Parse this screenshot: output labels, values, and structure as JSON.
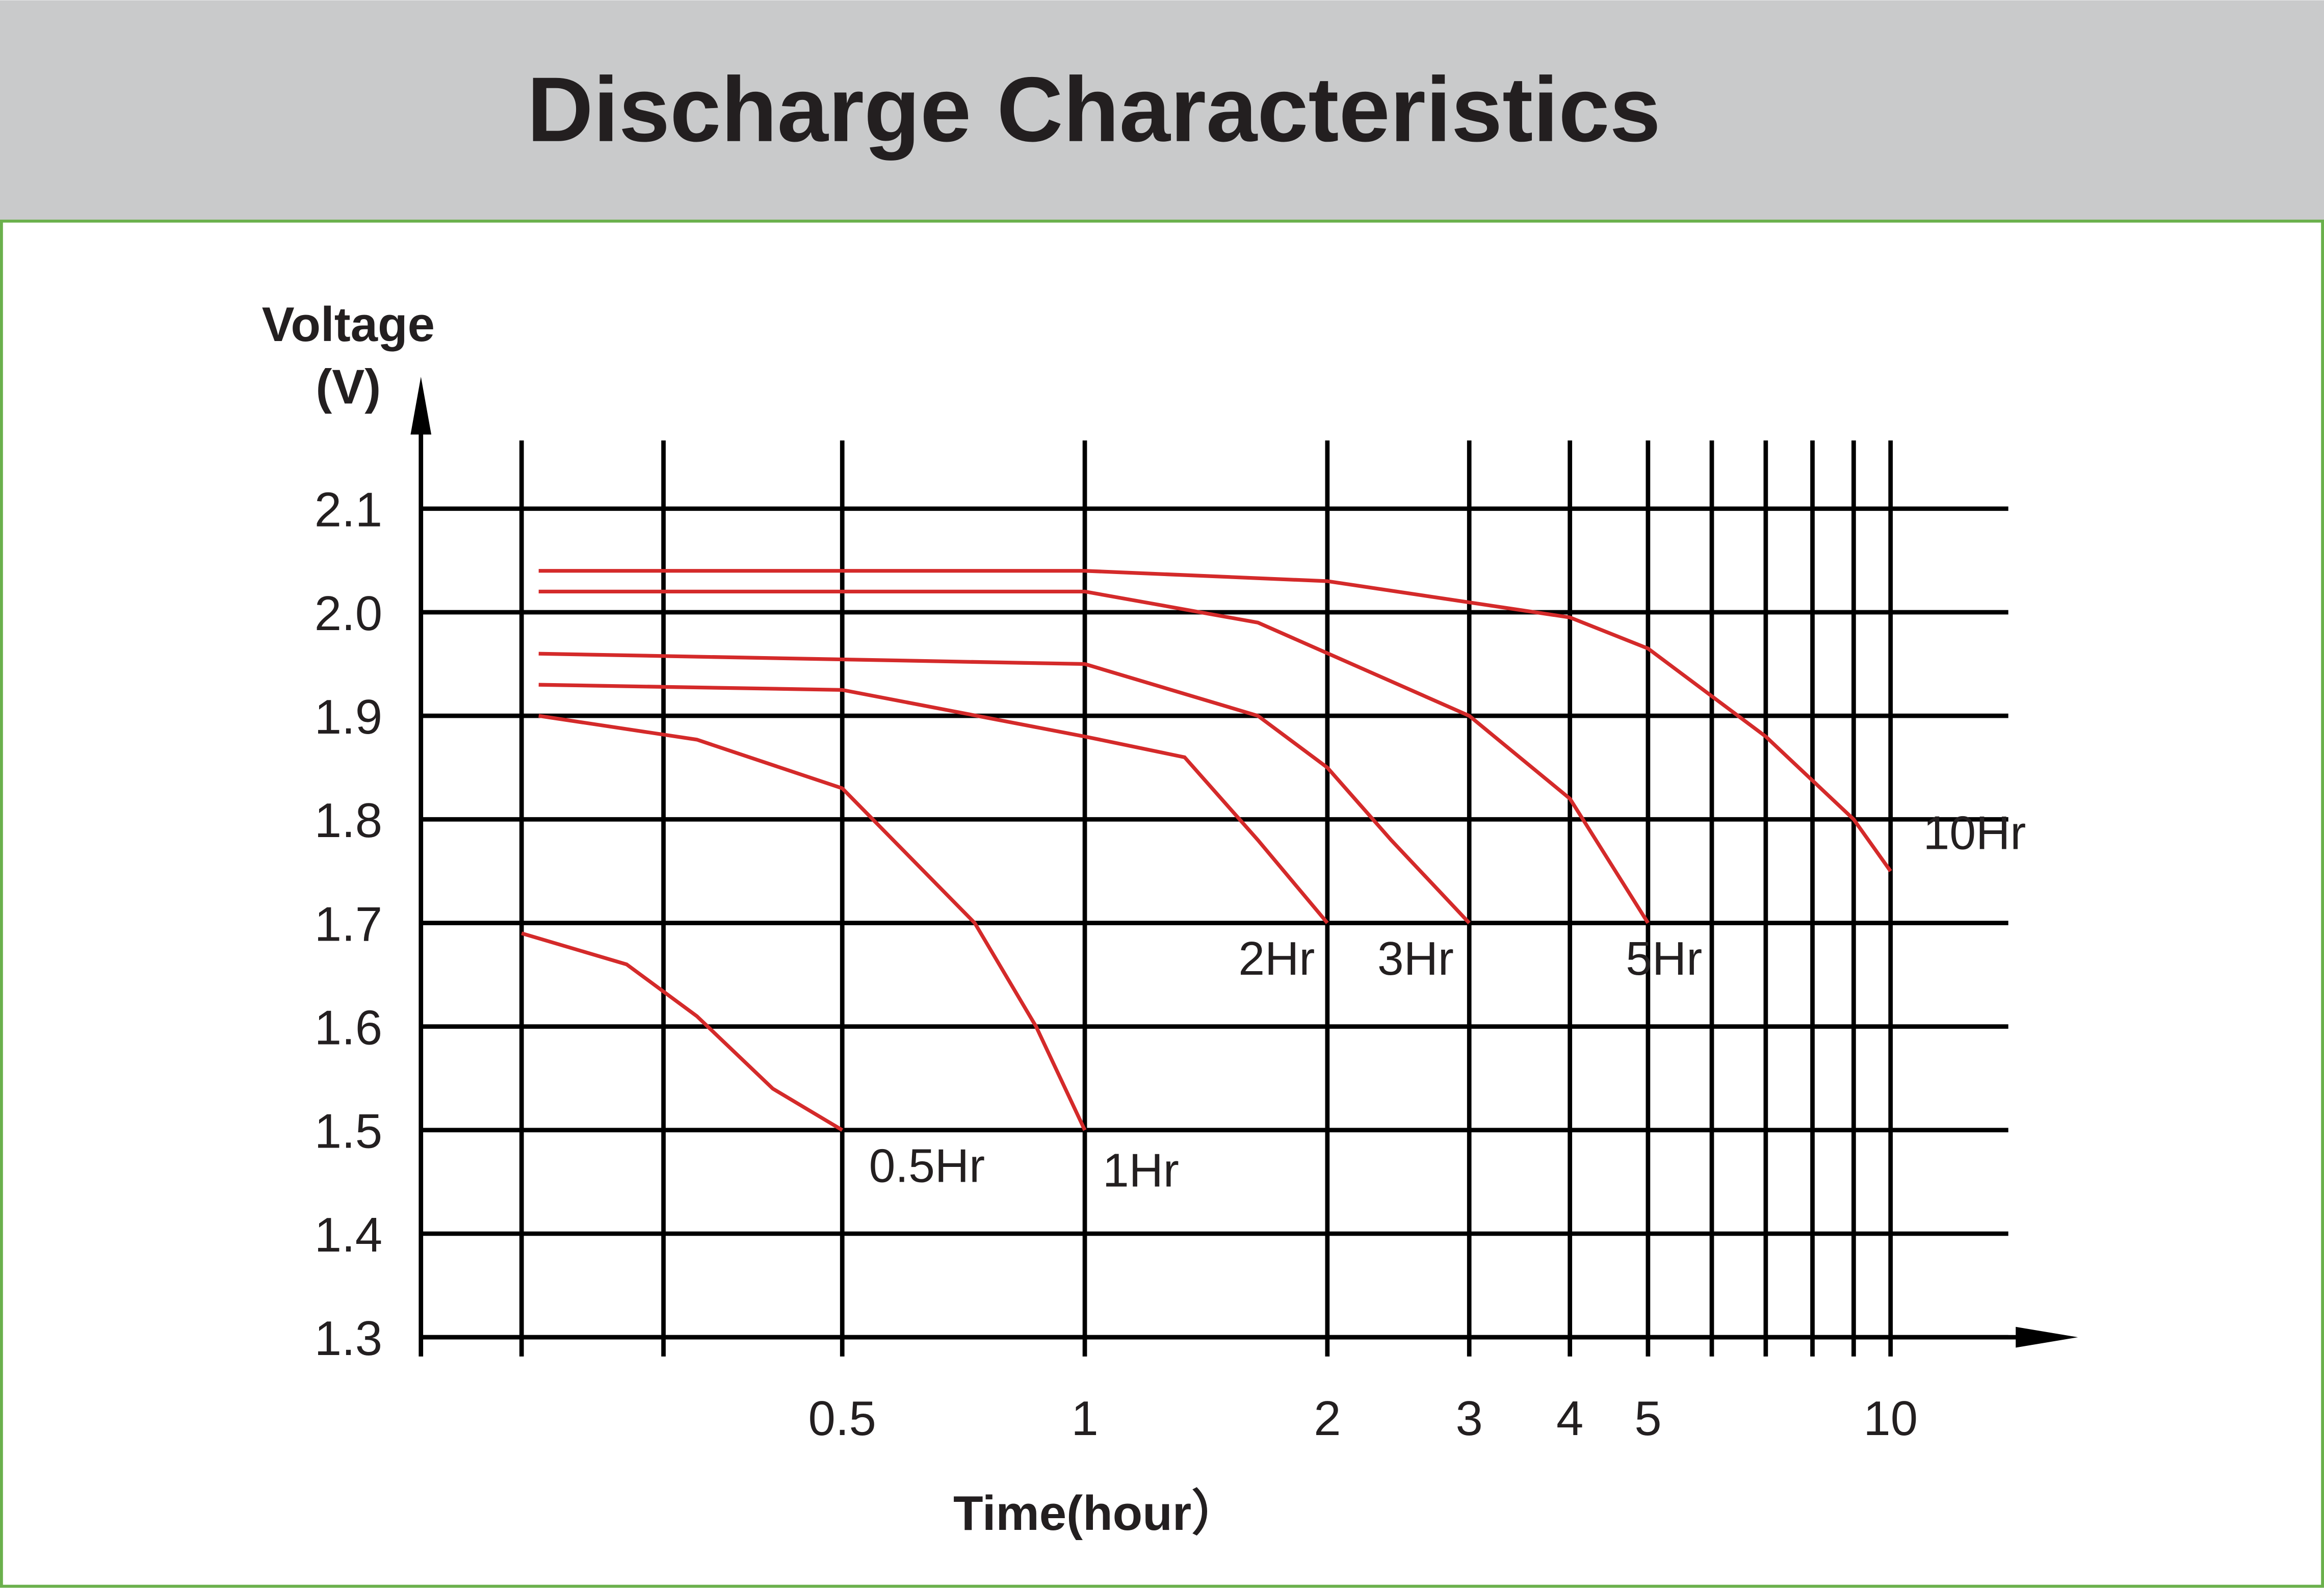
{
  "chart_data": {
    "type": "line",
    "title": "Discharge Characteristics",
    "ylabel": [
      "Voltage",
      "(V)"
    ],
    "xlabel": "Time(hour）",
    "xscale": "log",
    "xlim": [
      0.15,
      14
    ],
    "ylim": [
      1.3,
      2.1
    ],
    "xticks": [
      0.5,
      1,
      2,
      3,
      4,
      5,
      10
    ],
    "x_minor_gridlines": [
      0.2,
      0.3,
      6,
      7,
      8,
      9
    ],
    "yticks": [
      1.3,
      1.4,
      1.5,
      1.6,
      1.7,
      1.8,
      1.9,
      {
        "value": 2,
        "label": "2.0"
      },
      2.1
    ],
    "grid": true,
    "series": [
      {
        "name": "0.5Hr",
        "color": "#d42a2a",
        "x": [
          0.2,
          0.27,
          0.33,
          0.41,
          0.5
        ],
        "values": [
          1.69,
          1.66,
          1.61,
          1.54,
          1.5
        ]
      },
      {
        "name": "1Hr",
        "color": "#d42a2a",
        "x": [
          0.21,
          0.33,
          0.5,
          0.73,
          0.87,
          1
        ],
        "values": [
          1.9,
          1.877,
          1.83,
          1.7,
          1.6,
          1.5
        ]
      },
      {
        "name": "2Hr",
        "color": "#d42a2a",
        "x": [
          0.21,
          0.5,
          1,
          1.33,
          1.64,
          2
        ],
        "values": [
          1.93,
          1.925,
          1.88,
          1.86,
          1.78,
          1.7
        ]
      },
      {
        "name": "3Hr",
        "color": "#d42a2a",
        "x": [
          0.21,
          1,
          1.64,
          2,
          2.4,
          3
        ],
        "values": [
          1.96,
          1.95,
          1.9,
          1.85,
          1.78,
          1.7
        ]
      },
      {
        "name": "5Hr",
        "color": "#d42a2a",
        "x": [
          0.21,
          0.5,
          1,
          1.64,
          3,
          4,
          5
        ],
        "values": [
          2.02,
          2.02,
          2.02,
          1.99,
          1.9,
          1.82,
          1.7
        ]
      },
      {
        "name": "10Hr",
        "color": "#d42a2a",
        "x": [
          0.21,
          1,
          2,
          4,
          5,
          7,
          9,
          10
        ],
        "values": [
          2.04,
          2.04,
          2.03,
          1.995,
          1.965,
          1.88,
          1.8,
          1.75
        ]
      }
    ]
  }
}
